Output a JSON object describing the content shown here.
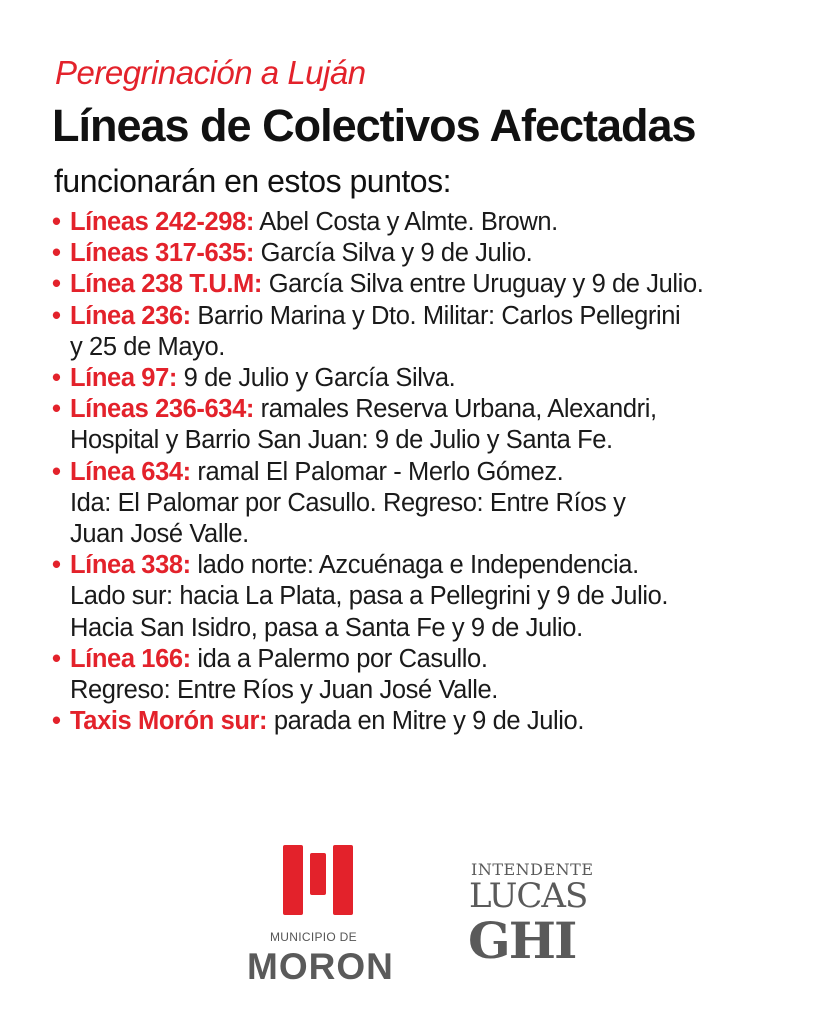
{
  "header": {
    "kicker": "Peregrinación a Luján",
    "title": "Líneas de Colectivos Afectadas",
    "subtitle": "funcionarán en estos puntos:"
  },
  "colors": {
    "accent": "#e3222b",
    "logo_gray": "#5a5a5a"
  },
  "items": [
    {
      "label": "Líneas 242-298:",
      "lines": [
        "Abel Costa y Almte. Brown."
      ]
    },
    {
      "label": "Líneas 317-635:",
      "lines": [
        "García Silva y 9 de Julio."
      ]
    },
    {
      "label": "Línea 238 T.U.M:",
      "lines": [
        "García Silva entre Uruguay y 9 de Julio."
      ]
    },
    {
      "label": "Línea 236:",
      "lines": [
        "Barrio Marina y Dto. Militar: Carlos Pellegrini",
        "y 25 de Mayo."
      ]
    },
    {
      "label": "Línea 97:",
      "lines": [
        "9 de Julio y García Silva."
      ]
    },
    {
      "label": "Líneas 236-634:",
      "lines": [
        "ramales Reserva Urbana, Alexandri,",
        "Hospital y Barrio San Juan: 9 de Julio y Santa Fe."
      ]
    },
    {
      "label": "Línea 634:",
      "lines": [
        "ramal El Palomar - Merlo Gómez.",
        "Ida: El Palomar por Casullo. Regreso: Entre Ríos y",
        "Juan José Valle."
      ]
    },
    {
      "label": "Línea 338:",
      "lines": [
        "lado norte: Azcuénaga e Independencia.",
        "Lado sur: hacia La Plata, pasa a Pellegrini y 9 de Julio.",
        "Hacia San Isidro, pasa a Santa Fe y 9 de Julio."
      ]
    },
    {
      "label": "Línea 166:",
      "lines": [
        "ida a Palermo por Casullo.",
        "Regreso: Entre Ríos y Juan José Valle."
      ]
    },
    {
      "label": "Taxis Morón sur:",
      "lines": [
        "parada en Mitre y 9 de Julio."
      ]
    }
  ],
  "logos": {
    "municipio_small": "MUNICIPIO DE",
    "municipio_name": "MORON",
    "intendente_small": "INTENDENTE",
    "intendente_first": "LUCAS",
    "intendente_last": "GHI"
  }
}
